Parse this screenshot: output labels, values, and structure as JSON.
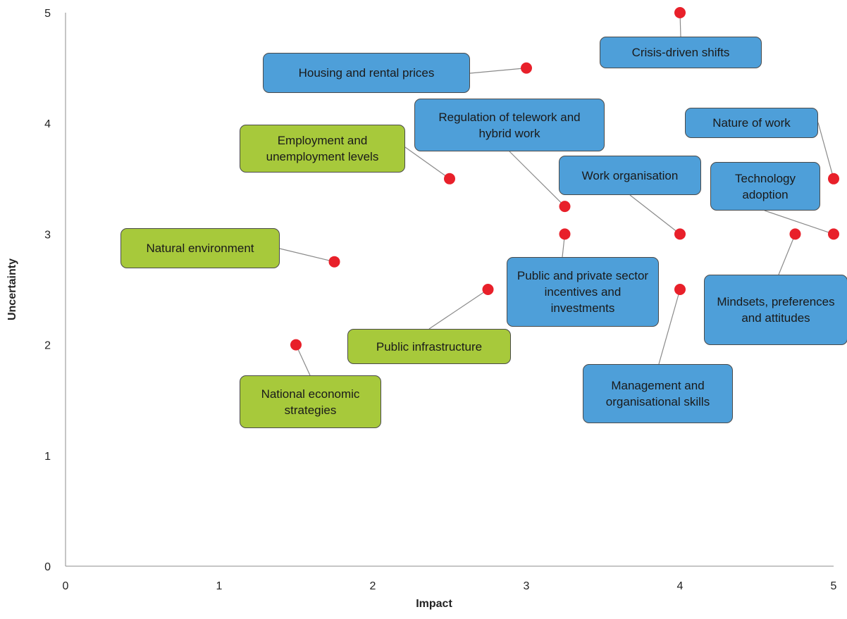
{
  "chart_data": {
    "type": "scatter",
    "xlabel": "Impact",
    "ylabel": "Uncertainty",
    "xlim": [
      0,
      5
    ],
    "ylim": [
      0,
      5
    ],
    "x_ticks": [
      "0",
      "1",
      "2",
      "3",
      "4",
      "5"
    ],
    "y_ticks": [
      "0",
      "1",
      "2",
      "3",
      "4",
      "5"
    ],
    "grid": false,
    "legend": "none",
    "colors": {
      "point": "#e8202a",
      "blue_label": "#4e9fd9",
      "green_label": "#a7c93b"
    },
    "points": [
      {
        "label": "Crisis-driven shifts",
        "x": 4.0,
        "y": 5.0,
        "color": "blue"
      },
      {
        "label": "Housing and rental prices",
        "x": 3.0,
        "y": 4.5,
        "color": "blue"
      },
      {
        "label": "Regulation of telework and hybrid work",
        "x": 3.25,
        "y": 3.25,
        "color": "blue"
      },
      {
        "label": "Nature of work",
        "x": 5.0,
        "y": 3.5,
        "color": "blue"
      },
      {
        "label": "Employment and unemployment levels",
        "x": 2.5,
        "y": 3.5,
        "color": "green"
      },
      {
        "label": "Work organisation",
        "x": 4.0,
        "y": 3.0,
        "color": "blue"
      },
      {
        "label": "Technology adoption",
        "x": 5.0,
        "y": 3.0,
        "color": "blue"
      },
      {
        "label": "Natural environment",
        "x": 1.75,
        "y": 2.75,
        "color": "green"
      },
      {
        "label": "Public and private sector incentives and investments",
        "x": 3.25,
        "y": 3.0,
        "color": "blue"
      },
      {
        "label": "Mindsets, preferences and attitudes",
        "x": 4.75,
        "y": 3.0,
        "color": "blue"
      },
      {
        "label": "Public infrastructure",
        "x": 2.75,
        "y": 2.5,
        "color": "green"
      },
      {
        "label": "Management and organisational skills",
        "x": 4.0,
        "y": 2.5,
        "color": "blue"
      },
      {
        "label": "National economic strategies",
        "x": 1.5,
        "y": 2.0,
        "color": "green"
      }
    ]
  }
}
